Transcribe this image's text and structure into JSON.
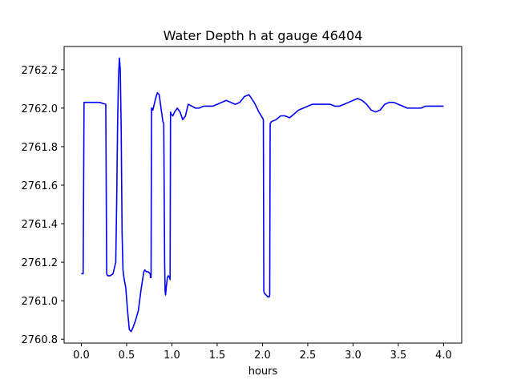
{
  "chart_data": {
    "type": "line",
    "title": "Water Depth h at gauge 46404",
    "xlabel": "hours",
    "ylabel": "",
    "xlim": [
      -0.19,
      4.2
    ],
    "ylim": [
      2760.78,
      2762.32
    ],
    "xticks": [
      0.0,
      0.5,
      1.0,
      1.5,
      2.0,
      2.5,
      3.0,
      3.5,
      4.0
    ],
    "xtick_labels": [
      "0.0",
      "0.5",
      "1.0",
      "1.5",
      "2.0",
      "2.5",
      "3.0",
      "3.5",
      "4.0"
    ],
    "yticks": [
      2760.8,
      2761.0,
      2761.2,
      2761.4,
      2761.6,
      2761.8,
      2762.0,
      2762.2
    ],
    "ytick_labels": [
      "2760.8",
      "2761.0",
      "2761.2",
      "2761.4",
      "2761.6",
      "2761.8",
      "2762.0",
      "2762.2"
    ],
    "grid": false,
    "series": [
      {
        "color": "#0000ff",
        "x": [
          0.0,
          0.02,
          0.03,
          0.05,
          0.1,
          0.2,
          0.27,
          0.28,
          0.29,
          0.32,
          0.35,
          0.38,
          0.39,
          0.4,
          0.41,
          0.42,
          0.43,
          0.44,
          0.45,
          0.46,
          0.47,
          0.49,
          0.51,
          0.53,
          0.55,
          0.57,
          0.6,
          0.63,
          0.66,
          0.69,
          0.7,
          0.72,
          0.74,
          0.76,
          0.765,
          0.77,
          0.775,
          0.78,
          0.79,
          0.8,
          0.82,
          0.84,
          0.86,
          0.88,
          0.9,
          0.91,
          0.92,
          0.925,
          0.93,
          0.94,
          0.95,
          0.96,
          0.975,
          0.98,
          0.985,
          0.99,
          1.01,
          1.03,
          1.06,
          1.09,
          1.12,
          1.15,
          1.18,
          1.22,
          1.26,
          1.3,
          1.35,
          1.4,
          1.45,
          1.5,
          1.55,
          1.6,
          1.65,
          1.7,
          1.75,
          1.8,
          1.85,
          1.88,
          1.92,
          1.96,
          2.0,
          2.01,
          2.015,
          2.02,
          2.04,
          2.06,
          2.075,
          2.08,
          2.085,
          2.1,
          2.15,
          2.2,
          2.25,
          2.3,
          2.35,
          2.4,
          2.45,
          2.5,
          2.55,
          2.6,
          2.65,
          2.7,
          2.75,
          2.8,
          2.85,
          2.9,
          2.95,
          3.0,
          3.05,
          3.1,
          3.15,
          3.2,
          3.25,
          3.3,
          3.35,
          3.4,
          3.45,
          3.5,
          3.55,
          3.6,
          3.65,
          3.7,
          3.75,
          3.8,
          3.85,
          3.9,
          3.95,
          4.0
        ],
        "y": [
          2761.14,
          2761.14,
          2762.03,
          2762.03,
          2762.03,
          2762.03,
          2762.02,
          2761.14,
          2761.13,
          2761.13,
          2761.14,
          2761.2,
          2761.5,
          2761.9,
          2762.15,
          2762.26,
          2762.2,
          2761.9,
          2761.35,
          2761.16,
          2761.12,
          2761.07,
          2760.95,
          2760.85,
          2760.84,
          2760.86,
          2760.9,
          2760.95,
          2761.06,
          2761.15,
          2761.16,
          2761.15,
          2761.15,
          2761.14,
          2761.12,
          2761.12,
          2762.0,
          2762.0,
          2761.99,
          2762.01,
          2762.05,
          2762.08,
          2762.07,
          2762.0,
          2761.93,
          2761.92,
          2761.2,
          2761.05,
          2761.03,
          2761.08,
          2761.12,
          2761.13,
          2761.12,
          2761.11,
          2761.98,
          2761.97,
          2761.96,
          2761.98,
          2762.0,
          2761.98,
          2761.94,
          2761.96,
          2762.02,
          2762.01,
          2762.0,
          2762.0,
          2762.01,
          2762.01,
          2762.01,
          2762.02,
          2762.03,
          2762.04,
          2762.03,
          2762.02,
          2762.03,
          2762.06,
          2762.07,
          2762.05,
          2762.02,
          2761.98,
          2761.95,
          2761.94,
          2761.05,
          2761.04,
          2761.03,
          2761.02,
          2761.02,
          2761.03,
          2761.92,
          2761.93,
          2761.94,
          2761.96,
          2761.96,
          2761.95,
          2761.97,
          2761.99,
          2762.0,
          2762.01,
          2762.02,
          2762.02,
          2762.02,
          2762.02,
          2762.02,
          2762.01,
          2762.01,
          2762.02,
          2762.03,
          2762.04,
          2762.05,
          2762.04,
          2762.02,
          2761.99,
          2761.98,
          2761.99,
          2762.02,
          2762.03,
          2762.03,
          2762.02,
          2762.01,
          2762.0,
          2762.0,
          2762.0,
          2762.0,
          2762.01,
          2762.01,
          2762.01,
          2762.01,
          2762.01
        ]
      }
    ]
  }
}
